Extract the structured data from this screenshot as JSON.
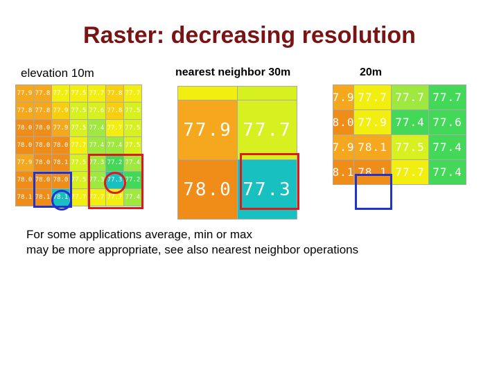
{
  "title": "Raster: decreasing resolution",
  "labels": {
    "elevation": "elevation 10m",
    "nearest": "nearest neighbor 30m",
    "res20": "20m"
  },
  "note": {
    "line1": "For some applications average, min or max",
    "line2": "may be more appropriate, see also nearest neighbor operations"
  },
  "colors": {
    "orange_dark": "#f08c18",
    "orange": "#f5a81e",
    "yellow_orange": "#f8cf10",
    "yellow": "#f2ee10",
    "yellow_green": "#d6f020",
    "light_green": "#9ee840",
    "green": "#44d858",
    "teal": "#18c0c0",
    "highlight_red": "#dd1a1a",
    "highlight_blue": "#2233cc"
  },
  "grid10": [
    [
      {
        "v": "77.9",
        "c": "orange"
      },
      {
        "v": "77.8",
        "c": "orange"
      },
      {
        "v": "77.7",
        "c": "yellow"
      },
      {
        "v": "77.5",
        "c": "yellow"
      },
      {
        "v": "77.7",
        "c": "yellow"
      },
      {
        "v": "77.8",
        "c": "yellow_orange"
      },
      {
        "v": "77.7",
        "c": "yellow"
      }
    ],
    [
      {
        "v": "77.8",
        "c": "orange"
      },
      {
        "v": "77.8",
        "c": "orange"
      },
      {
        "v": "77.9",
        "c": "yellow_orange"
      },
      {
        "v": "77.5",
        "c": "yellow_green"
      },
      {
        "v": "77.6",
        "c": "yellow_green"
      },
      {
        "v": "77.8",
        "c": "yellow_orange"
      },
      {
        "v": "77.5",
        "c": "yellow_green"
      }
    ],
    [
      {
        "v": "78.0",
        "c": "orange_dark"
      },
      {
        "v": "78.0",
        "c": "orange_dark"
      },
      {
        "v": "77.9",
        "c": "orange"
      },
      {
        "v": "77.5",
        "c": "yellow_green"
      },
      {
        "v": "77.4",
        "c": "light_green"
      },
      {
        "v": "77.7",
        "c": "yellow"
      },
      {
        "v": "77.5",
        "c": "yellow_green"
      }
    ],
    [
      {
        "v": "78.0",
        "c": "orange_dark"
      },
      {
        "v": "78.0",
        "c": "orange_dark"
      },
      {
        "v": "78.0",
        "c": "orange_dark"
      },
      {
        "v": "77.7",
        "c": "yellow"
      },
      {
        "v": "77.4",
        "c": "light_green"
      },
      {
        "v": "77.4",
        "c": "light_green"
      },
      {
        "v": "77.5",
        "c": "yellow_green"
      }
    ],
    [
      {
        "v": "77.9",
        "c": "orange"
      },
      {
        "v": "78.0",
        "c": "orange_dark"
      },
      {
        "v": "78.1",
        "c": "orange_dark"
      },
      {
        "v": "77.5",
        "c": "yellow_green"
      },
      {
        "v": "77.3",
        "c": "light_green"
      },
      {
        "v": "77.2",
        "c": "green"
      },
      {
        "v": "77.4",
        "c": "light_green"
      }
    ],
    [
      {
        "v": "78.0",
        "c": "orange_dark"
      },
      {
        "v": "78.0",
        "c": "orange_dark"
      },
      {
        "v": "78.0",
        "c": "orange_dark"
      },
      {
        "v": "77.5",
        "c": "yellow_green"
      },
      {
        "v": "77.3",
        "c": "light_green"
      },
      {
        "v": "77.3",
        "c": "teal"
      },
      {
        "v": "77.2",
        "c": "green"
      }
    ],
    [
      {
        "v": "78.1",
        "c": "orange_dark"
      },
      {
        "v": "78.1",
        "c": "orange_dark"
      },
      {
        "v": "78.1",
        "c": "teal"
      },
      {
        "v": "77.7",
        "c": "yellow"
      },
      {
        "v": "77.7",
        "c": "yellow"
      },
      {
        "v": "77.7",
        "c": "yellow"
      },
      {
        "v": "77.4",
        "c": "light_green"
      }
    ]
  ],
  "grid30": [
    [
      {
        "v": "",
        "c": "yellow"
      },
      {
        "v": "",
        "c": "yellow_green"
      }
    ],
    [
      {
        "v": "77.9",
        "c": "orange"
      },
      {
        "v": "77.7",
        "c": "yellow_green"
      }
    ],
    [
      {
        "v": "78.0",
        "c": "orange_dark"
      },
      {
        "v": "77.3",
        "c": "teal"
      }
    ]
  ],
  "grid20": [
    [
      {
        "v": "7.9",
        "c": "orange"
      },
      {
        "v": "77.7",
        "c": "yellow"
      },
      {
        "v": "77.7",
        "c": "light_green"
      },
      {
        "v": "77.7",
        "c": "green"
      }
    ],
    [
      {
        "v": "8.0",
        "c": "orange_dark"
      },
      {
        "v": "77.9",
        "c": "yellow"
      },
      {
        "v": "77.4",
        "c": "green"
      },
      {
        "v": "77.6",
        "c": "green"
      }
    ],
    [
      {
        "v": "7.9",
        "c": "orange"
      },
      {
        "v": "78.1",
        "c": "orange"
      },
      {
        "v": "77.5",
        "c": "yellow_green"
      },
      {
        "v": "77.4",
        "c": "green"
      }
    ],
    [
      {
        "v": "8.1",
        "c": "orange_dark"
      },
      {
        "v": "78.1",
        "c": "orange_dark"
      },
      {
        "v": "77.7",
        "c": "yellow"
      },
      {
        "v": "77.4",
        "c": "green"
      }
    ]
  ]
}
